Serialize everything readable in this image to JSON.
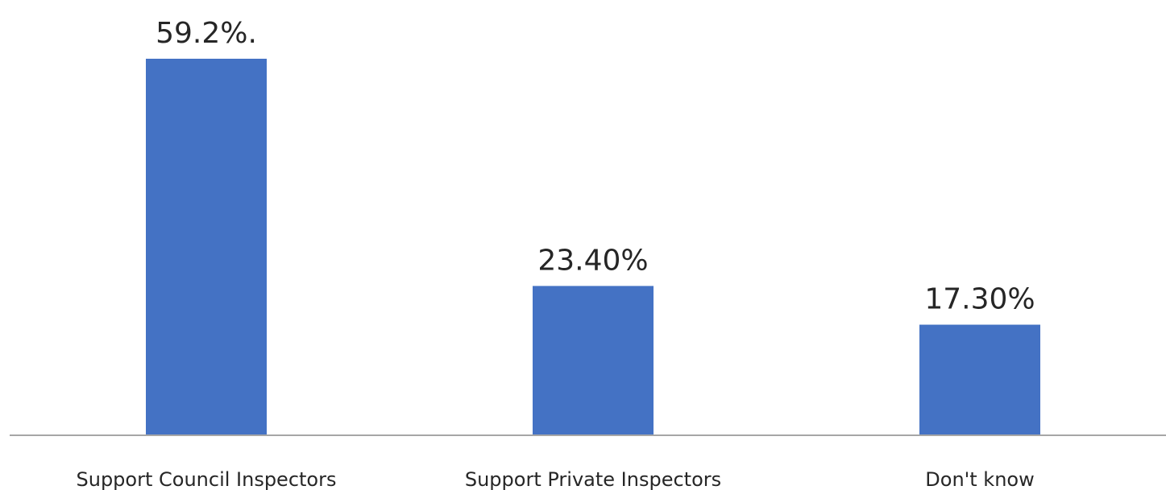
{
  "chart_data": {
    "type": "bar",
    "categories": [
      "Support Council Inspectors",
      "Support Private Inspectors",
      "Don't know"
    ],
    "values": [
      59.2,
      23.4,
      17.3
    ],
    "data_labels": [
      "59.2%.",
      "23.40%",
      "17.30%"
    ],
    "title": "",
    "xlabel": "",
    "ylabel": "",
    "ylim": [
      0,
      59.2
    ],
    "grid": false,
    "legend": "none",
    "bar_color": "#4472C4",
    "axis_color": "#a6a6a6",
    "text_color": "#262626"
  }
}
